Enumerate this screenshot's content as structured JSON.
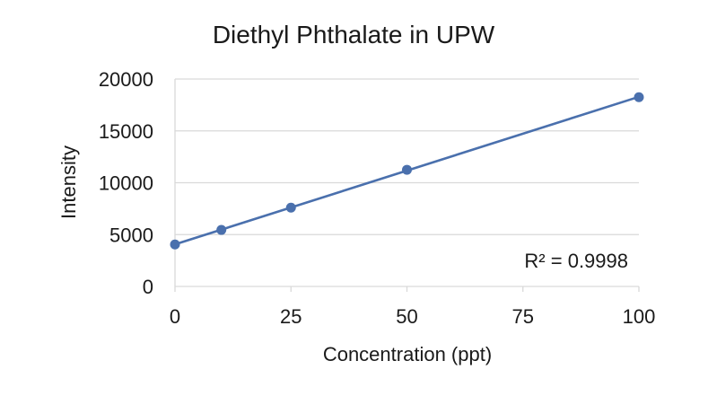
{
  "chart_data": {
    "type": "scatter",
    "title": "Diethyl Phthalate in UPW",
    "xlabel": "Concentration (ppt)",
    "ylabel": "Intensity",
    "xlim": [
      0,
      100
    ],
    "ylim": [
      0,
      20000
    ],
    "x_ticks": [
      "0",
      "25",
      "50",
      "75",
      "100"
    ],
    "y_ticks": [
      "0",
      "5000",
      "10000",
      "15000",
      "20000"
    ],
    "series": [
      {
        "x": [
          0,
          10,
          25,
          50,
          100
        ],
        "y": [
          4050,
          5450,
          7600,
          11250,
          18250
        ],
        "trendline": "linear"
      }
    ],
    "annotation": "R² = 0.9998",
    "grid": "horizontal",
    "legend": "none",
    "colors": {
      "series": "#4a70ad",
      "grid": "#d9d9d9",
      "text": "#1a1a1a"
    }
  }
}
